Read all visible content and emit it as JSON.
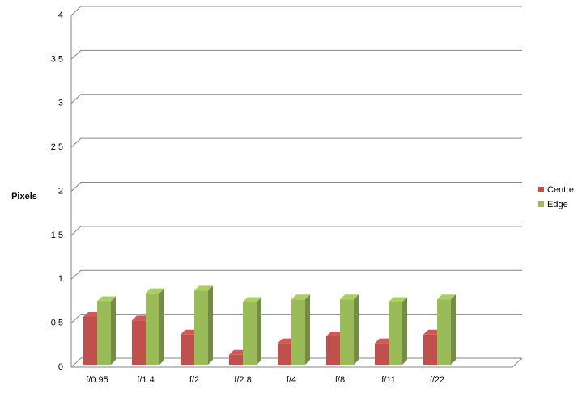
{
  "chart_data": {
    "type": "bar3d",
    "y_label": "Pixels",
    "categories": [
      "f/0.95",
      "f/1.4",
      "f/2",
      "f/2.8",
      "f/4",
      "f/8",
      "f/11",
      "f/22"
    ],
    "series": [
      {
        "name": "Centre",
        "color": "#c0504d",
        "values": [
          0.57,
          0.53,
          0.37,
          0.14,
          0.27,
          0.35,
          0.27,
          0.37
        ]
      },
      {
        "name": "Edge",
        "color": "#9bbb59",
        "values": [
          0.75,
          0.84,
          0.87,
          0.74,
          0.77,
          0.77,
          0.74,
          0.77
        ]
      }
    ],
    "ylim": [
      0,
      4
    ],
    "yticks": [
      0,
      0.5,
      1,
      1.5,
      2,
      2.5,
      3,
      3.5,
      4
    ],
    "grid": true,
    "legend": "right"
  }
}
